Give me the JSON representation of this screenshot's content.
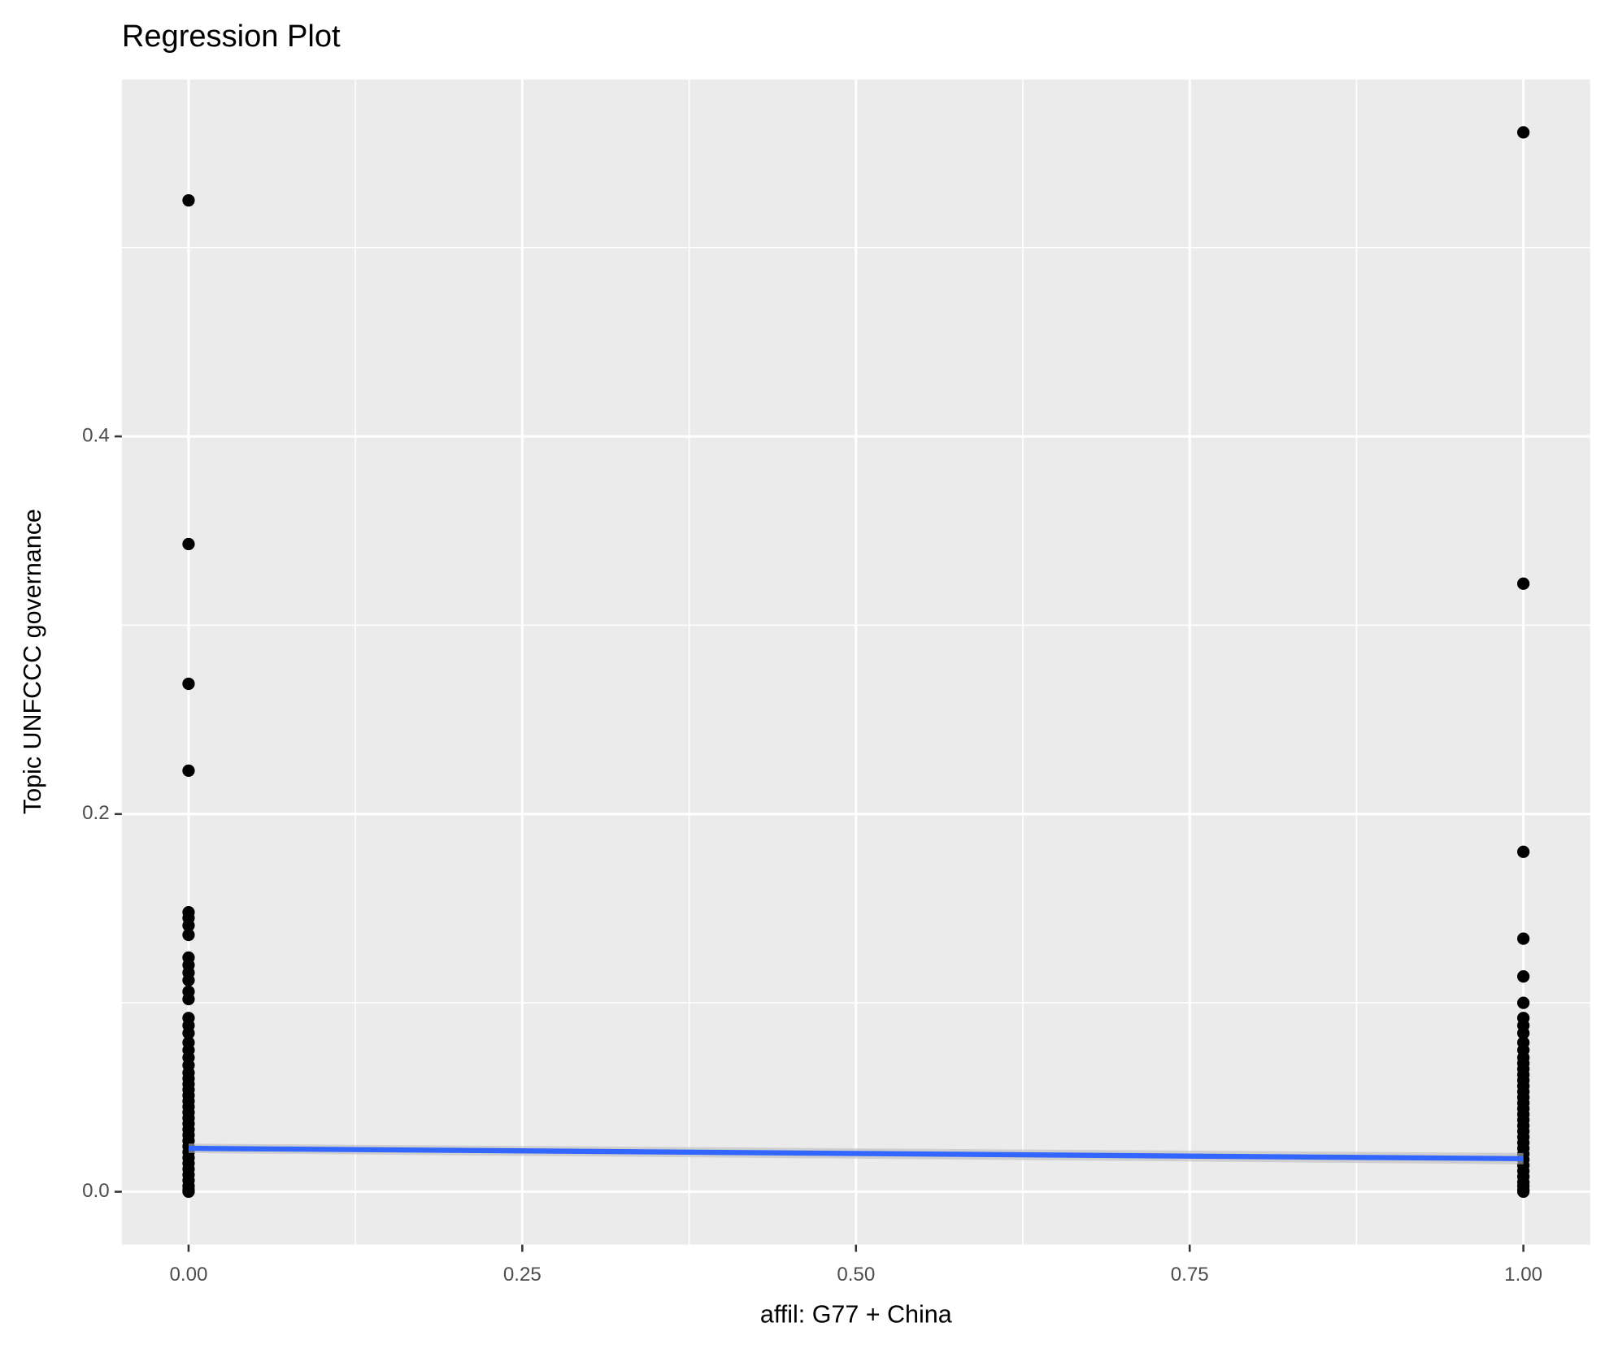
{
  "chart_data": {
    "type": "scatter",
    "title": "Regression Plot",
    "x_label": "affil: G77 + China",
    "y_label": "Topic UNFCCC governance",
    "xlim": [
      -0.05,
      1.05
    ],
    "ylim": [
      -0.028,
      0.589
    ],
    "xticks": [
      {
        "value": 0,
        "label": "0.00"
      },
      {
        "value": 0.25,
        "label": "0.25"
      },
      {
        "value": 0.5,
        "label": "0.50"
      },
      {
        "value": 0.75,
        "label": "0.75"
      },
      {
        "value": 1,
        "label": "1.00"
      }
    ],
    "yticks": [
      {
        "value": 0,
        "label": "0.0"
      },
      0.2,
      0.4
    ],
    "x_minor_grid": [
      0.125,
      0.375,
      0.625,
      0.875
    ],
    "y_minor_grid": [
      0.1,
      0.3,
      0.5
    ],
    "grid": true,
    "points": {
      "color": "#000000",
      "x": [
        0,
        0,
        0,
        0,
        0,
        0,
        0,
        0,
        0,
        0,
        0,
        0,
        0,
        0,
        0,
        0,
        0,
        0,
        0,
        0,
        0,
        0,
        0,
        0,
        0,
        0,
        0,
        0,
        0,
        0,
        0,
        0,
        0,
        0,
        0,
        0,
        0,
        0,
        0,
        0,
        0,
        0,
        0,
        0,
        1,
        1,
        1,
        1,
        1,
        1,
        1,
        1,
        1,
        1,
        1,
        1,
        1,
        1,
        1,
        1,
        1,
        1,
        1,
        1,
        1,
        1,
        1,
        1,
        1,
        1,
        1,
        1,
        1,
        1,
        1,
        1,
        1,
        1,
        1,
        1,
        1
      ],
      "y": [
        0.525,
        0.343,
        0.269,
        0.223,
        0.148,
        0.145,
        0.141,
        0.136,
        0.124,
        0.12,
        0.116,
        0.112,
        0.106,
        0.102,
        0.092,
        0.088,
        0.084,
        0.079,
        0.075,
        0.071,
        0.067,
        0.063,
        0.06,
        0.057,
        0.054,
        0.051,
        0.048,
        0.045,
        0.042,
        0.039,
        0.036,
        0.033,
        0.03,
        0.027,
        0.024,
        0.021,
        0.018,
        0.015,
        0.012,
        0.009,
        0.006,
        0.003,
        0.001,
        0,
        0.561,
        0.322,
        0.18,
        0.134,
        0.114,
        0.1,
        0.092,
        0.088,
        0.084,
        0.079,
        0.075,
        0.071,
        0.068,
        0.065,
        0.062,
        0.059,
        0.056,
        0.053,
        0.05,
        0.047,
        0.044,
        0.041,
        0.038,
        0.035,
        0.032,
        0.029,
        0.026,
        0.023,
        0.02,
        0.017,
        0.014,
        0.011,
        0.008,
        0.005,
        0.003,
        0.001,
        0
      ]
    },
    "fit": {
      "color": "#3366ff",
      "band_color": "#bdbdbd",
      "x": [
        0,
        1
      ],
      "y": [
        0.023,
        0.0175
      ],
      "lower": [
        0.0205,
        0.0145
      ],
      "upper": [
        0.0255,
        0.0205
      ]
    }
  }
}
